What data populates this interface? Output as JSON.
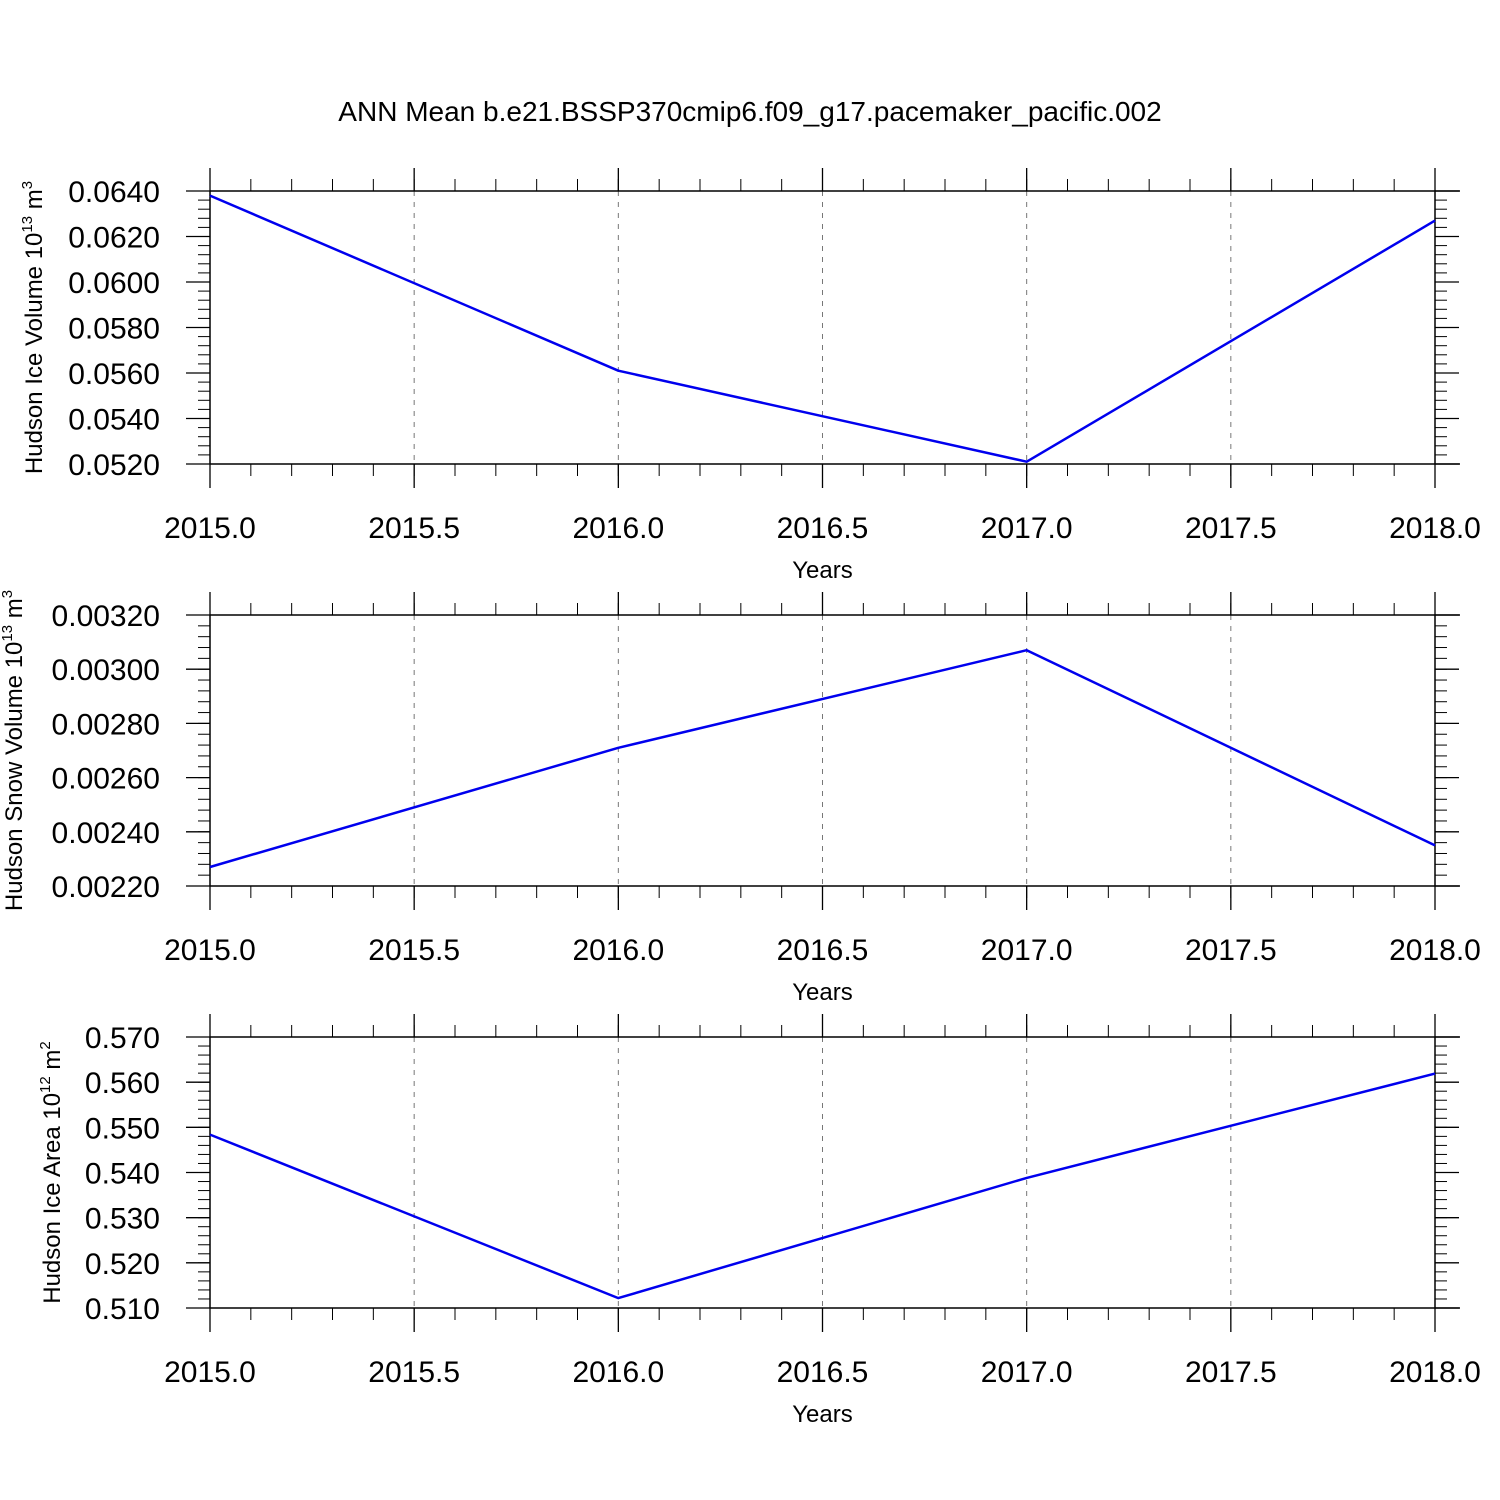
{
  "title": "ANN Mean b.e21.BSSP370cmip6.f09_g17.pacemaker_pacific.002",
  "colors": {
    "series": "#0000ee",
    "axes": "#000000",
    "grid": "#777777",
    "background": "#ffffff"
  },
  "chart_data": [
    {
      "type": "line",
      "ylabel": {
        "text": "Hudson Ice Volume 10",
        "exponent": "13",
        "unit": " m",
        "unit_exponent": "3"
      },
      "xlabel": "Years",
      "x": [
        2015.0,
        2016.0,
        2017.0,
        2018.0
      ],
      "y": [
        0.0638,
        0.0561,
        0.0521,
        0.0627
      ],
      "xlim": [
        2015.0,
        2018.0
      ],
      "ylim": [
        0.052,
        0.064
      ],
      "x_ticks": [
        2015.0,
        2015.5,
        2016.0,
        2016.5,
        2017.0,
        2017.5,
        2018.0
      ],
      "x_tick_labels": [
        "2015.0",
        "2015.5",
        "2016.0",
        "2016.5",
        "2017.0",
        "2017.5",
        "2018.0"
      ],
      "y_ticks": [
        0.052,
        0.054,
        0.056,
        0.058,
        0.06,
        0.062,
        0.064
      ],
      "y_tick_labels": [
        "0.0520",
        "0.0540",
        "0.0560",
        "0.0580",
        "0.0600",
        "0.0620",
        "0.0640"
      ],
      "y_minor_step": 0.0004,
      "grid": "vertical dashed"
    },
    {
      "type": "line",
      "ylabel": {
        "text": "Hudson Snow Volume 10",
        "exponent": "13",
        "unit": " m",
        "unit_exponent": "3"
      },
      "xlabel": "Years",
      "x": [
        2015.0,
        2016.0,
        2017.0,
        2018.0
      ],
      "y": [
        0.00227,
        0.00271,
        0.00307,
        0.00235
      ],
      "xlim": [
        2015.0,
        2018.0
      ],
      "ylim": [
        0.0022,
        0.0032
      ],
      "x_ticks": [
        2015.0,
        2015.5,
        2016.0,
        2016.5,
        2017.0,
        2017.5,
        2018.0
      ],
      "x_tick_labels": [
        "2015.0",
        "2015.5",
        "2016.0",
        "2016.5",
        "2017.0",
        "2017.5",
        "2018.0"
      ],
      "y_ticks": [
        0.0022,
        0.0024,
        0.0026,
        0.0028,
        0.003,
        0.0032
      ],
      "y_tick_labels": [
        "0.00220",
        "0.00240",
        "0.00260",
        "0.00280",
        "0.00300",
        "0.00320"
      ],
      "y_minor_step": 4e-05,
      "grid": "vertical dashed"
    },
    {
      "type": "line",
      "ylabel": {
        "text": "Hudson Ice Area 10",
        "exponent": "12",
        "unit": " m",
        "unit_exponent": "2"
      },
      "xlabel": "Years",
      "x": [
        2015.0,
        2016.0,
        2017.0,
        2018.0
      ],
      "y": [
        0.5484,
        0.5122,
        0.5388,
        0.5619
      ],
      "xlim": [
        2015.0,
        2018.0
      ],
      "ylim": [
        0.51,
        0.57
      ],
      "x_ticks": [
        2015.0,
        2015.5,
        2016.0,
        2016.5,
        2017.0,
        2017.5,
        2018.0
      ],
      "x_tick_labels": [
        "2015.0",
        "2015.5",
        "2016.0",
        "2016.5",
        "2017.0",
        "2017.5",
        "2018.0"
      ],
      "y_ticks": [
        0.51,
        0.52,
        0.53,
        0.54,
        0.55,
        0.56,
        0.57
      ],
      "y_tick_labels": [
        "0.510",
        "0.520",
        "0.530",
        "0.540",
        "0.550",
        "0.560",
        "0.570"
      ],
      "y_minor_step": 0.002,
      "grid": "vertical dashed"
    }
  ]
}
